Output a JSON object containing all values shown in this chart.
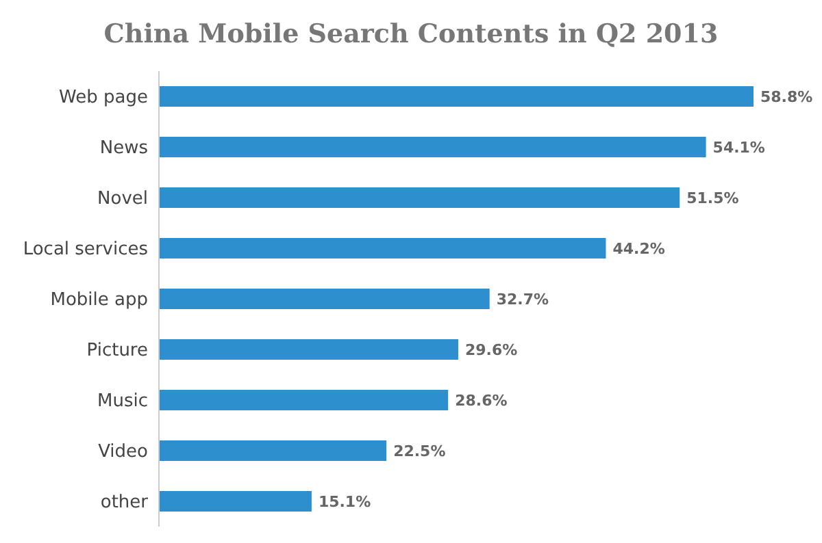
{
  "chart_data": {
    "type": "bar",
    "orientation": "horizontal",
    "title": "China Mobile Search Contents in Q2 2013",
    "categories": [
      "Web page",
      "News",
      "Novel",
      "Local services",
      "Mobile app",
      "Picture",
      "Music",
      "Video",
      "other"
    ],
    "values": [
      58.8,
      54.1,
      51.5,
      44.2,
      32.7,
      29.6,
      28.6,
      22.5,
      15.1
    ],
    "value_labels": [
      "58.8%",
      "54.1%",
      "51.5%",
      "44.2%",
      "32.7%",
      "29.6%",
      "28.6%",
      "22.5%",
      "15.1%"
    ],
    "color": "#2e8fcf",
    "tick_labels": "y",
    "grid": false,
    "legend": false
  }
}
